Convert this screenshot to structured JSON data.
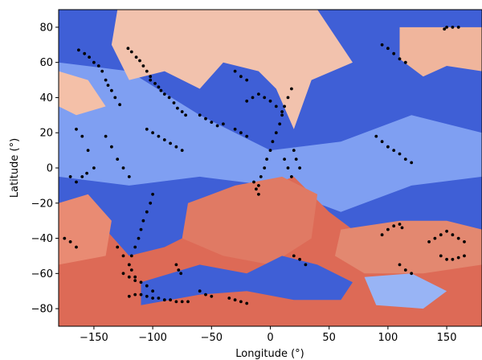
{
  "chart_data": {
    "type": "scatter",
    "title": "",
    "xlabel": "Longitude (°)",
    "ylabel": "Latitude (°)",
    "xlim": [
      -180,
      180
    ],
    "ylim": [
      -90,
      90
    ],
    "xticks": [
      -150,
      -100,
      -50,
      0,
      50,
      100,
      150
    ],
    "yticks": [
      -80,
      -60,
      -40,
      -20,
      0,
      20,
      40,
      60,
      80
    ],
    "xtick_labels": [
      "−150",
      "−100",
      "−50",
      "0",
      "50",
      "100",
      "150"
    ],
    "ytick_labels": [
      "−80",
      "−60",
      "−40",
      "−20",
      "0",
      "20",
      "40",
      "60",
      "80"
    ],
    "background": {
      "type": "heatmap",
      "colormap": "coolwarm",
      "regions": [
        {
          "name": "cool-north",
          "color": "#3f5fd6",
          "polygon": [
            [
              -180,
              90
            ],
            [
              180,
              90
            ],
            [
              180,
              -90
            ],
            [
              -180,
              -90
            ]
          ]
        },
        {
          "name": "light-blue-belt",
          "color": "#7f9ff2",
          "polygon": [
            [
              -180,
              60
            ],
            [
              -120,
              55
            ],
            [
              -60,
              30
            ],
            [
              0,
              10
            ],
            [
              60,
              15
            ],
            [
              120,
              30
            ],
            [
              180,
              20
            ],
            [
              180,
              -5
            ],
            [
              120,
              -10
            ],
            [
              60,
              -25
            ],
            [
              0,
              -10
            ],
            [
              -60,
              -5
            ],
            [
              -120,
              -10
            ],
            [
              -180,
              -5
            ]
          ]
        },
        {
          "name": "pale-north",
          "color": "#f2c2ad",
          "polygon": [
            [
              -130,
              90
            ],
            [
              40,
              90
            ],
            [
              70,
              60
            ],
            [
              35,
              50
            ],
            [
              20,
              22
            ],
            [
              5,
              45
            ],
            [
              -10,
              55
            ],
            [
              -40,
              60
            ],
            [
              -60,
              45
            ],
            [
              -90,
              55
            ],
            [
              -120,
              50
            ],
            [
              -135,
              70
            ]
          ]
        },
        {
          "name": "pale-ne",
          "color": "#f0b59c",
          "polygon": [
            [
              110,
              80
            ],
            [
              180,
              80
            ],
            [
              180,
              55
            ],
            [
              150,
              58
            ],
            [
              130,
              52
            ],
            [
              110,
              62
            ]
          ]
        },
        {
          "name": "pale-northwest",
          "color": "#f4c0a8",
          "polygon": [
            [
              -180,
              55
            ],
            [
              -155,
              50
            ],
            [
              -140,
              35
            ],
            [
              -165,
              30
            ],
            [
              -180,
              35
            ]
          ]
        },
        {
          "name": "warm-south",
          "color": "#dd6a56",
          "polygon": [
            [
              -180,
              -40
            ],
            [
              -140,
              -35
            ],
            [
              -120,
              -50
            ],
            [
              -90,
              -45
            ],
            [
              -60,
              -35
            ],
            [
              -30,
              -20
            ],
            [
              0,
              -10
            ],
            [
              20,
              -5
            ],
            [
              50,
              -25
            ],
            [
              80,
              -40
            ],
            [
              110,
              -45
            ],
            [
              140,
              -55
            ],
            [
              180,
              -45
            ],
            [
              180,
              -90
            ],
            [
              -180,
              -90
            ]
          ]
        },
        {
          "name": "warm-mid",
          "color": "#e98b73",
          "polygon": [
            [
              -180,
              -20
            ],
            [
              -155,
              -15
            ],
            [
              -135,
              -30
            ],
            [
              -140,
              -50
            ],
            [
              -180,
              -55
            ]
          ]
        },
        {
          "name": "warm-center",
          "color": "#e07a64",
          "polygon": [
            [
              -70,
              -20
            ],
            [
              -30,
              -10
            ],
            [
              10,
              -5
            ],
            [
              40,
              -15
            ],
            [
              35,
              -40
            ],
            [
              0,
              -55
            ],
            [
              -40,
              -50
            ],
            [
              -75,
              -40
            ]
          ]
        },
        {
          "name": "warm-east",
          "color": "#e38870",
          "polygon": [
            [
              60,
              -35
            ],
            [
              110,
              -30
            ],
            [
              150,
              -30
            ],
            [
              180,
              -35
            ],
            [
              180,
              -55
            ],
            [
              130,
              -60
            ],
            [
              80,
              -60
            ],
            [
              55,
              -50
            ]
          ]
        },
        {
          "name": "cool-south-band",
          "color": "#3f5fd6",
          "polygon": [
            [
              -110,
              -65
            ],
            [
              -60,
              -55
            ],
            [
              -20,
              -60
            ],
            [
              10,
              -50
            ],
            [
              40,
              -55
            ],
            [
              70,
              -65
            ],
            [
              60,
              -75
            ],
            [
              20,
              -75
            ],
            [
              -20,
              -70
            ],
            [
              -60,
              -72
            ],
            [
              -110,
              -78
            ]
          ]
        },
        {
          "name": "light-blue-south",
          "color": "#98b4f5",
          "polygon": [
            [
              80,
              -62
            ],
            [
              120,
              -60
            ],
            [
              150,
              -70
            ],
            [
              130,
              -80
            ],
            [
              90,
              -78
            ]
          ]
        }
      ]
    },
    "points": [
      [
        -163,
        67
      ],
      [
        -158,
        65
      ],
      [
        -154,
        63
      ],
      [
        -150,
        60
      ],
      [
        -146,
        58
      ],
      [
        -143,
        55
      ],
      [
        -140,
        50
      ],
      [
        -138,
        47
      ],
      [
        -135,
        44
      ],
      [
        -132,
        40
      ],
      [
        -128,
        36
      ],
      [
        -121,
        68
      ],
      [
        -118,
        66
      ],
      [
        -114,
        63
      ],
      [
        -111,
        61
      ],
      [
        -108,
        58
      ],
      [
        -105,
        55
      ],
      [
        -102,
        52
      ],
      [
        -102,
        50
      ],
      [
        -98,
        48
      ],
      [
        -95,
        46
      ],
      [
        -93,
        44
      ],
      [
        -90,
        42
      ],
      [
        -86,
        40
      ],
      [
        -82,
        37
      ],
      [
        -79,
        34
      ],
      [
        -75,
        32
      ],
      [
        -72,
        30
      ],
      [
        -105,
        22
      ],
      [
        -100,
        20
      ],
      [
        -95,
        18
      ],
      [
        -90,
        16
      ],
      [
        -85,
        14
      ],
      [
        -80,
        12
      ],
      [
        -75,
        10
      ],
      [
        -165,
        22
      ],
      [
        -160,
        18
      ],
      [
        -155,
        10
      ],
      [
        -150,
        0
      ],
      [
        -156,
        -3
      ],
      [
        -160,
        -5
      ],
      [
        -165,
        -8
      ],
      [
        -170,
        -5
      ],
      [
        -140,
        18
      ],
      [
        -135,
        12
      ],
      [
        -130,
        5
      ],
      [
        -125,
        0
      ],
      [
        -120,
        -5
      ],
      [
        -100,
        -15
      ],
      [
        -102,
        -20
      ],
      [
        -105,
        -25
      ],
      [
        -108,
        -30
      ],
      [
        -110,
        -35
      ],
      [
        -112,
        -40
      ],
      [
        -115,
        -45
      ],
      [
        -118,
        -50
      ],
      [
        -120,
        -55
      ],
      [
        -125,
        -60
      ],
      [
        -120,
        -62
      ],
      [
        -115,
        -64
      ],
      [
        -110,
        -65
      ],
      [
        -105,
        -67
      ],
      [
        -100,
        -70
      ],
      [
        -130,
        -45
      ],
      [
        -125,
        -50
      ],
      [
        -120,
        -55
      ],
      [
        -118,
        -58
      ],
      [
        -115,
        -62
      ],
      [
        -110,
        -72
      ],
      [
        -105,
        -73
      ],
      [
        -100,
        -74
      ],
      [
        -95,
        -74
      ],
      [
        -90,
        -75
      ],
      [
        -85,
        -75
      ],
      [
        -80,
        -76
      ],
      [
        -75,
        -76
      ],
      [
        -70,
        -76
      ],
      [
        -120,
        -73
      ],
      [
        -115,
        -72
      ],
      [
        -30,
        -75
      ],
      [
        -25,
        -76
      ],
      [
        -20,
        -77
      ],
      [
        -35,
        -74
      ],
      [
        -10,
        -10
      ],
      [
        -8,
        -5
      ],
      [
        -5,
        0
      ],
      [
        -3,
        5
      ],
      [
        0,
        10
      ],
      [
        2,
        15
      ],
      [
        5,
        20
      ],
      [
        8,
        25
      ],
      [
        10,
        30
      ],
      [
        12,
        35
      ],
      [
        15,
        40
      ],
      [
        18,
        45
      ],
      [
        -12,
        -12
      ],
      [
        -10,
        -15
      ],
      [
        -14,
        -8
      ],
      [
        20,
        10
      ],
      [
        22,
        5
      ],
      [
        25,
        0
      ],
      [
        18,
        -5
      ],
      [
        15,
        0
      ],
      [
        12,
        5
      ],
      [
        -20,
        38
      ],
      [
        -15,
        40
      ],
      [
        -10,
        42
      ],
      [
        -5,
        40
      ],
      [
        0,
        38
      ],
      [
        5,
        35
      ],
      [
        10,
        32
      ],
      [
        -30,
        22
      ],
      [
        -25,
        20
      ],
      [
        -20,
        18
      ],
      [
        -40,
        25
      ],
      [
        -45,
        24
      ],
      [
        -60,
        30
      ],
      [
        -55,
        28
      ],
      [
        -50,
        26
      ],
      [
        -30,
        55
      ],
      [
        -25,
        52
      ],
      [
        -20,
        50
      ],
      [
        90,
        18
      ],
      [
        95,
        15
      ],
      [
        100,
        12
      ],
      [
        105,
        10
      ],
      [
        110,
        8
      ],
      [
        115,
        5
      ],
      [
        120,
        3
      ],
      [
        150,
        80
      ],
      [
        155,
        80
      ],
      [
        160,
        80
      ],
      [
        148,
        79
      ],
      [
        100,
        68
      ],
      [
        105,
        65
      ],
      [
        110,
        62
      ],
      [
        115,
        60
      ],
      [
        95,
        70
      ],
      [
        95,
        -38
      ],
      [
        100,
        -35
      ],
      [
        105,
        -33
      ],
      [
        110,
        -32
      ],
      [
        112,
        -34
      ],
      [
        140,
        -40
      ],
      [
        145,
        -38
      ],
      [
        150,
        -36
      ],
      [
        155,
        -38
      ],
      [
        160,
        -40
      ],
      [
        165,
        -42
      ],
      [
        135,
        -42
      ],
      [
        145,
        -50
      ],
      [
        150,
        -52
      ],
      [
        155,
        -52
      ],
      [
        160,
        -51
      ],
      [
        165,
        -50
      ],
      [
        110,
        -55
      ],
      [
        115,
        -58
      ],
      [
        120,
        -60
      ],
      [
        -175,
        -40
      ],
      [
        -170,
        -42
      ],
      [
        -165,
        -45
      ],
      [
        -60,
        -70
      ],
      [
        -55,
        -72
      ],
      [
        -50,
        -73
      ],
      [
        20,
        -50
      ],
      [
        25,
        -52
      ],
      [
        30,
        -55
      ],
      [
        -80,
        -55
      ],
      [
        -78,
        -58
      ],
      [
        -76,
        -60
      ]
    ]
  }
}
